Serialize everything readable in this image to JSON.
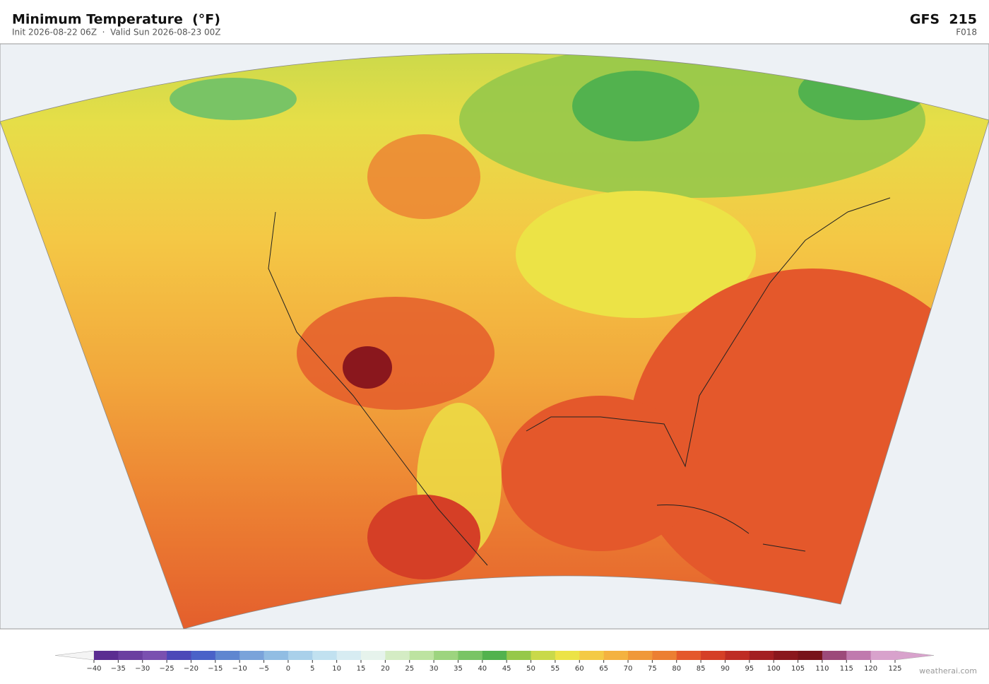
{
  "header": {
    "title": "Minimum Temperature  (°F)",
    "subtitle": "Init 2026-08-22 06Z  ·  Valid Sun 2026-08-23 00Z",
    "model": "GFS  215",
    "forecast_hour": "F018"
  },
  "colorbar": {
    "ticks": [
      {
        "value": -40,
        "label": "−40"
      },
      {
        "value": -35,
        "label": "−35"
      },
      {
        "value": -30,
        "label": "−30"
      },
      {
        "value": -25,
        "label": "−25"
      },
      {
        "value": -20,
        "label": "−20"
      },
      {
        "value": -15,
        "label": "−15"
      },
      {
        "value": -10,
        "label": "−10"
      },
      {
        "value": -5,
        "label": "−5"
      },
      0,
      5,
      10,
      15,
      20,
      25,
      30,
      35,
      40,
      45,
      50,
      55,
      60,
      65,
      70,
      75,
      80,
      85,
      90,
      95,
      100,
      105,
      110,
      115,
      120,
      125
    ],
    "colors": [
      "#5b2d91",
      "#6b3fa0",
      "#7a50b0",
      "#4d48b8",
      "#4a62c8",
      "#5f86d0",
      "#7aa3da",
      "#91bde3",
      "#a9d0ea",
      "#c1e1f0",
      "#d7ecf2",
      "#e6f3ec",
      "#d4ecc4",
      "#bde3a1",
      "#9dd47f",
      "#79c465",
      "#52b24e",
      "#96c84a",
      "#c9d94a",
      "#ece346",
      "#f4ca45",
      "#f4b240",
      "#f09838",
      "#ec7f32",
      "#e4582b",
      "#d53f26",
      "#be2c24",
      "#a31f22",
      "#8a171d",
      "#78131a",
      "#9c4a7a",
      "#c07aae",
      "#d8a2cc"
    ],
    "under_color": "#f4f4f4",
    "over_color": "#d8a2cc"
  },
  "watermark": "weatherai.com"
}
